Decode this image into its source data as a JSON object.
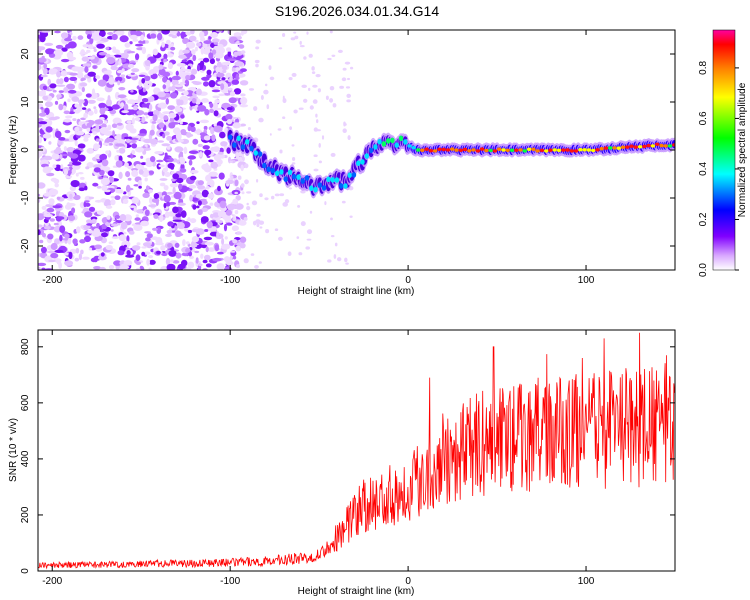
{
  "title": "S196.2026.034.01.34.G14",
  "chart_data": [
    {
      "type": "heatmap",
      "xlabel": "Height of straight line (km)",
      "ylabel": "Frequency (Hz)",
      "xlim": [
        -208,
        150
      ],
      "ylim": [
        -25,
        25
      ],
      "x_ticks": [
        -200,
        -100,
        0,
        100
      ],
      "y_ticks": [
        -20,
        -10,
        0,
        10,
        20
      ],
      "colorbar": {
        "label": "Normalized spectral amplitude",
        "range": [
          0,
          0.95
        ],
        "ticks": [
          0.0,
          0.2,
          0.4,
          0.6,
          0.8
        ],
        "colors": [
          "#ffffff",
          "#d9a8ff",
          "#8000ff",
          "#0000ff",
          "#00ffff",
          "#00ff00",
          "#ffff00",
          "#ff8000",
          "#ff0000",
          "#ff00a0"
        ]
      },
      "ridge": {
        "x": [
          -100,
          -90,
          -80,
          -70,
          -60,
          -50,
          -40,
          -35,
          -30,
          -25,
          -20,
          -15,
          -10,
          -5,
          0,
          5,
          10,
          20,
          40,
          60,
          80,
          100,
          120,
          140,
          150
        ],
        "frequency": [
          2,
          1,
          -3,
          -5,
          -6,
          -8,
          -6,
          -7,
          -4,
          -2,
          0,
          2,
          1,
          2,
          1,
          0,
          0,
          0,
          0,
          0,
          0,
          0,
          0.5,
          1,
          1
        ]
      },
      "noise_region_x": [
        -208,
        -100
      ]
    },
    {
      "type": "line",
      "xlabel": "Height of straight line (km)",
      "ylabel": "SNR (10 * v/v)",
      "xlim": [
        -208,
        150
      ],
      "ylim": [
        0,
        860
      ],
      "x_ticks": [
        -200,
        -100,
        0,
        100
      ],
      "y_ticks": [
        0,
        200,
        400,
        600,
        800
      ],
      "color": "#ff0000",
      "trend": {
        "x": [
          -208,
          -150,
          -100,
          -80,
          -60,
          -50,
          -40,
          -30,
          -20,
          -10,
          0,
          10,
          20,
          30,
          40,
          50,
          60,
          80,
          100,
          120,
          140,
          150
        ],
        "snr": [
          20,
          25,
          30,
          35,
          45,
          60,
          120,
          200,
          240,
          270,
          300,
          350,
          400,
          430,
          450,
          470,
          480,
          490,
          500,
          510,
          520,
          530
        ]
      },
      "peaks": [
        {
          "x": 12,
          "snr": 690
        },
        {
          "x": 48,
          "snr": 800
        },
        {
          "x": 98,
          "snr": 760
        },
        {
          "x": 110,
          "snr": 830
        },
        {
          "x": 130,
          "snr": 850
        },
        {
          "x": 145,
          "snr": 770
        }
      ]
    }
  ]
}
